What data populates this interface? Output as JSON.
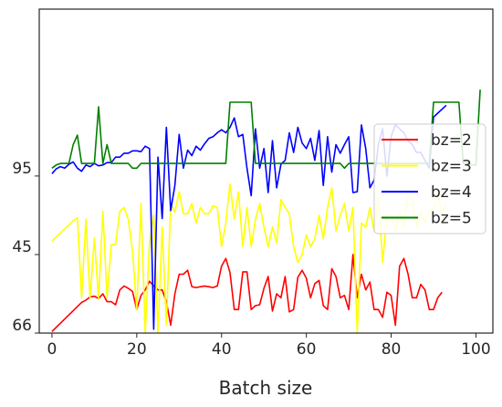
{
  "chart_data": {
    "type": "line",
    "title": "",
    "xlabel": "Batch size",
    "ylabel": "",
    "xlim": [
      -3,
      104
    ],
    "ylim": [
      0,
      4.125
    ],
    "xticks": [
      0,
      20,
      40,
      60,
      80,
      100
    ],
    "yticks": [
      {
        "value": 0,
        "label": "66"
      },
      {
        "value": 1,
        "label": "45"
      },
      {
        "value": 2,
        "label": "95"
      }
    ],
    "grid": false,
    "legend": "right",
    "series": [
      {
        "name": "bz=2",
        "color": "#ff0000",
        "x": [
          0,
          7,
          8,
          9,
          10,
          11,
          12,
          13,
          14,
          15,
          16,
          17,
          18,
          19,
          20,
          21,
          22,
          23,
          24,
          25,
          26,
          27,
          28,
          29,
          30,
          31,
          32,
          33,
          34,
          35,
          36,
          37,
          38,
          39,
          40,
          41,
          42,
          43,
          44,
          45,
          46,
          47,
          48,
          49,
          50,
          51,
          52,
          53,
          54,
          55,
          56,
          57,
          58,
          59,
          60,
          61,
          62,
          63,
          64,
          65,
          66,
          67,
          68,
          69,
          70,
          71,
          72,
          73,
          74,
          75,
          76,
          77,
          78,
          79,
          80,
          81,
          82,
          83,
          84,
          85,
          86,
          87,
          88,
          89,
          90,
          91,
          92
        ],
        "y": [
          0.02,
          0.39,
          0.42,
          0.46,
          0.47,
          0.44,
          0.5,
          0.4,
          0.4,
          0.36,
          0.55,
          0.6,
          0.57,
          0.53,
          0.3,
          0.48,
          0.55,
          0.66,
          0.6,
          0.55,
          0.55,
          0.4,
          0.1,
          0.5,
          0.75,
          0.75,
          0.8,
          0.59,
          0.58,
          0.59,
          0.6,
          0.59,
          0.58,
          0.6,
          0.85,
          0.95,
          0.77,
          0.3,
          0.3,
          0.78,
          0.78,
          0.3,
          0.35,
          0.36,
          0.57,
          0.72,
          0.28,
          0.5,
          0.45,
          0.72,
          0.27,
          0.3,
          0.71,
          0.8,
          0.7,
          0.45,
          0.63,
          0.67,
          0.35,
          0.3,
          0.82,
          0.72,
          0.45,
          0.48,
          0.3,
          1.0,
          0.45,
          0.75,
          0.55,
          0.65,
          0.3,
          0.3,
          0.2,
          0.52,
          0.48,
          0.1,
          0.85,
          0.95,
          0.75,
          0.45,
          0.45,
          0.62,
          0.55,
          0.3,
          0.3,
          0.45,
          0.52
        ]
      },
      {
        "name": "bz=3",
        "color": "#ffff00",
        "x": [
          0,
          5,
          6,
          7,
          8,
          9,
          10,
          11,
          12,
          13,
          14,
          15,
          16,
          17,
          18,
          19,
          20,
          21,
          22,
          23,
          24,
          25,
          26,
          27,
          28,
          29,
          30,
          31,
          32,
          33,
          34,
          35,
          36,
          37,
          38,
          39,
          40,
          41,
          42,
          43,
          44,
          45,
          46,
          47,
          48,
          49,
          50,
          51,
          52,
          53,
          54,
          55,
          56,
          57,
          58,
          59,
          60,
          61,
          62,
          63,
          64,
          65,
          66,
          67,
          68,
          69,
          70,
          71,
          72,
          73,
          74,
          75,
          76,
          77,
          78,
          79,
          80,
          81,
          82,
          83,
          84,
          85,
          86,
          87,
          88,
          89,
          90,
          91,
          92,
          93
        ],
        "y": [
          1.17,
          1.43,
          1.47,
          0.45,
          1.45,
          0.45,
          1.21,
          0.44,
          1.55,
          0.45,
          1.13,
          1.13,
          1.55,
          1.6,
          1.45,
          1.05,
          0.3,
          1.65,
          0.0,
          1.15,
          1.5,
          0.0,
          1.35,
          0.1,
          1.65,
          1.54,
          1.8,
          1.52,
          1.52,
          1.65,
          1.4,
          1.6,
          1.52,
          1.52,
          1.62,
          1.6,
          1.1,
          1.4,
          1.9,
          1.45,
          1.8,
          1.1,
          1.6,
          1.1,
          1.45,
          1.65,
          1.35,
          1.1,
          1.35,
          1.15,
          1.7,
          1.6,
          1.52,
          1.1,
          0.9,
          1.0,
          1.25,
          1.1,
          1.2,
          1.5,
          1.2,
          1.6,
          1.85,
          1.3,
          1.5,
          1.65,
          1.3,
          1.6,
          0.0,
          1.4,
          1.35,
          1.6,
          1.3,
          1.75,
          0.9,
          1.5,
          1.5,
          1.3,
          1.55,
          1.35,
          1.75,
          1.7,
          1.35,
          1.55,
          1.4,
          1.55,
          1.6,
          1.8,
          1.5,
          1.65
        ]
      },
      {
        "name": "bz=4",
        "color": "#0000ff",
        "x": [
          0,
          1,
          2,
          3,
          4,
          5,
          6,
          7,
          8,
          9,
          10,
          11,
          12,
          13,
          14,
          15,
          16,
          17,
          18,
          19,
          20,
          21,
          22,
          23,
          24,
          25,
          26,
          27,
          28,
          29,
          30,
          31,
          32,
          33,
          34,
          35,
          36,
          37,
          38,
          39,
          40,
          41,
          42,
          43,
          44,
          45,
          46,
          47,
          48,
          49,
          50,
          51,
          52,
          53,
          54,
          55,
          56,
          57,
          58,
          59,
          60,
          61,
          62,
          63,
          64,
          65,
          66,
          67,
          68,
          69,
          70,
          71,
          72,
          73,
          74,
          75,
          76,
          77,
          78,
          79,
          80,
          81,
          82,
          83,
          84,
          85,
          86,
          87,
          88,
          89,
          90,
          91,
          92,
          93
        ],
        "y": [
          2.03,
          2.09,
          2.12,
          2.1,
          2.15,
          2.18,
          2.1,
          2.06,
          2.14,
          2.12,
          2.16,
          2.13,
          2.14,
          2.17,
          2.17,
          2.24,
          2.24,
          2.29,
          2.29,
          2.32,
          2.32,
          2.31,
          2.38,
          2.35,
          0.05,
          2.24,
          1.46,
          2.62,
          1.56,
          1.88,
          2.53,
          2.1,
          2.33,
          2.26,
          2.38,
          2.33,
          2.41,
          2.48,
          2.5,
          2.55,
          2.59,
          2.55,
          2.62,
          2.74,
          2.5,
          2.53,
          2.1,
          1.75,
          2.6,
          2.1,
          2.35,
          1.79,
          2.45,
          1.85,
          2.15,
          2.2,
          2.55,
          2.3,
          2.62,
          2.42,
          2.35,
          2.48,
          2.2,
          2.58,
          1.88,
          2.5,
          2.05,
          2.4,
          2.29,
          2.4,
          2.5,
          1.79,
          1.8,
          2.65,
          2.35,
          1.85,
          1.95,
          2.4,
          2.6,
          2.0,
          2.5,
          2.65,
          2.6,
          2.55,
          2.45,
          2.4,
          2.3,
          2.3,
          2.2,
          2.1,
          2.75,
          2.8,
          2.85,
          2.9
        ]
      },
      {
        "name": "bz=5",
        "color": "#008000",
        "x": [
          0,
          1,
          2,
          3,
          4,
          5,
          6,
          7,
          8,
          9,
          10,
          11,
          12,
          13,
          14,
          15,
          16,
          17,
          18,
          19,
          20,
          21,
          22,
          23,
          24,
          25,
          26,
          27,
          28,
          29,
          30,
          31,
          32,
          33,
          34,
          35,
          36,
          37,
          38,
          39,
          40,
          41,
          42,
          43,
          44,
          45,
          46,
          47,
          48,
          49,
          50,
          51,
          52,
          53,
          54,
          55,
          56,
          57,
          58,
          59,
          60,
          61,
          62,
          63,
          64,
          65,
          66,
          67,
          68,
          69,
          70,
          71,
          72,
          73,
          74,
          75,
          76,
          77,
          78,
          79,
          80,
          81,
          82,
          83,
          84,
          85,
          86,
          87,
          88,
          89,
          90,
          91,
          92,
          93,
          94,
          95,
          96,
          97,
          98,
          99,
          100,
          101
        ],
        "y": [
          2.1,
          2.14,
          2.16,
          2.16,
          2.16,
          2.4,
          2.52,
          2.16,
          2.16,
          2.16,
          2.16,
          2.88,
          2.16,
          2.4,
          2.16,
          2.16,
          2.16,
          2.16,
          2.16,
          2.1,
          2.1,
          2.16,
          2.16,
          2.16,
          2.16,
          2.16,
          2.16,
          2.16,
          2.16,
          2.16,
          2.16,
          2.16,
          2.16,
          2.16,
          2.16,
          2.16,
          2.16,
          2.16,
          2.16,
          2.16,
          2.16,
          2.16,
          2.94,
          2.94,
          2.94,
          2.94,
          2.94,
          2.94,
          2.16,
          2.16,
          2.16,
          2.16,
          2.16,
          2.16,
          2.16,
          2.16,
          2.16,
          2.16,
          2.16,
          2.16,
          2.16,
          2.16,
          2.16,
          2.16,
          2.16,
          2.16,
          2.16,
          2.16,
          2.16,
          2.1,
          2.16,
          2.16,
          2.16,
          2.16,
          2.16,
          2.16,
          2.16,
          2.16,
          2.16,
          2.16,
          2.16,
          2.16,
          2.16,
          2.16,
          2.16,
          2.16,
          2.16,
          2.16,
          2.16,
          2.16,
          2.94,
          2.94,
          2.94,
          2.94,
          2.94,
          2.94,
          2.94,
          2.16,
          2.16,
          2.14,
          2.14,
          3.1
        ]
      }
    ]
  }
}
